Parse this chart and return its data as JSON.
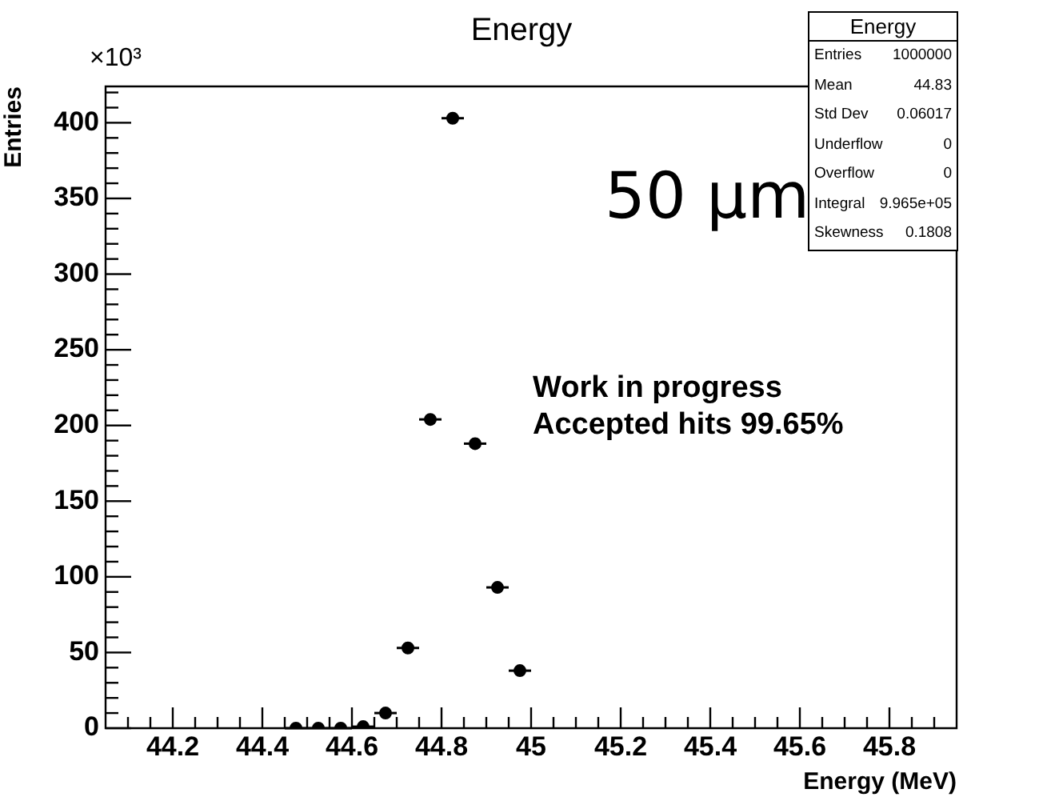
{
  "chart_data": {
    "type": "scatter",
    "title": "Energy",
    "xlabel": "Energy (MeV)",
    "ylabel": "Entries",
    "x": [
      44.475,
      44.525,
      44.575,
      44.625,
      44.675,
      44.725,
      44.775,
      44.825,
      44.875,
      44.925,
      44.975
    ],
    "values": [
      0,
      0,
      0,
      1,
      10,
      53,
      204,
      403,
      188,
      93,
      38
    ],
    "xerrors": [
      0.025,
      0.025,
      0.025,
      0.025,
      0.025,
      0.025,
      0.025,
      0.025,
      0.025,
      0.025,
      0.025
    ],
    "color": "#000000",
    "marker": "circle",
    "xlim": [
      44.05,
      45.95
    ],
    "xticks": [
      {
        "value": 44.1,
        "label": null
      },
      {
        "value": 44.15,
        "label": null
      },
      44.2,
      {
        "value": 44.25,
        "label": null
      },
      {
        "value": 44.3,
        "label": null
      },
      {
        "value": 44.35,
        "label": null
      },
      44.4,
      {
        "value": 44.45,
        "label": null
      },
      {
        "value": 44.5,
        "label": null
      },
      {
        "value": 44.55,
        "label": null
      },
      44.6,
      {
        "value": 44.65,
        "label": null
      },
      {
        "value": 44.7,
        "label": null
      },
      {
        "value": 44.75,
        "label": null
      },
      44.8,
      {
        "value": 44.85,
        "label": null
      },
      {
        "value": 44.9,
        "label": null
      },
      {
        "value": 44.95,
        "label": null
      },
      45,
      {
        "value": 45.05,
        "label": null
      },
      {
        "value": 45.1,
        "label": null
      },
      {
        "value": 45.15,
        "label": null
      },
      45.2,
      {
        "value": 45.25,
        "label": null
      },
      {
        "value": 45.3,
        "label": null
      },
      {
        "value": 45.35,
        "label": null
      },
      45.4,
      {
        "value": 45.45,
        "label": null
      },
      {
        "value": 45.5,
        "label": null
      },
      {
        "value": 45.55,
        "label": null
      },
      45.6,
      {
        "value": 45.65,
        "label": null
      },
      {
        "value": 45.7,
        "label": null
      },
      {
        "value": 45.75,
        "label": null
      },
      45.8,
      {
        "value": 45.85,
        "label": null
      },
      {
        "value": 45.9,
        "label": null
      }
    ],
    "ylim": [
      0,
      424
    ],
    "yticks": [
      0,
      {
        "value": 10,
        "label": null
      },
      {
        "value": 20,
        "label": null
      },
      {
        "value": 30,
        "label": null
      },
      {
        "value": 40,
        "label": null
      },
      50,
      {
        "value": 60,
        "label": null
      },
      {
        "value": 70,
        "label": null
      },
      {
        "value": 80,
        "label": null
      },
      {
        "value": 90,
        "label": null
      },
      100,
      {
        "value": 110,
        "label": null
      },
      {
        "value": 120,
        "label": null
      },
      {
        "value": 130,
        "label": null
      },
      {
        "value": 140,
        "label": null
      },
      150,
      {
        "value": 160,
        "label": null
      },
      {
        "value": 170,
        "label": null
      },
      {
        "value": 180,
        "label": null
      },
      {
        "value": 190,
        "label": null
      },
      200,
      {
        "value": 210,
        "label": null
      },
      {
        "value": 220,
        "label": null
      },
      {
        "value": 230,
        "label": null
      },
      {
        "value": 240,
        "label": null
      },
      250,
      {
        "value": 260,
        "label": null
      },
      {
        "value": 270,
        "label": null
      },
      {
        "value": 280,
        "label": null
      },
      {
        "value": 290,
        "label": null
      },
      300,
      {
        "value": 310,
        "label": null
      },
      {
        "value": 320,
        "label": null
      },
      {
        "value": 330,
        "label": null
      },
      {
        "value": 340,
        "label": null
      },
      350,
      {
        "value": 360,
        "label": null
      },
      {
        "value": 370,
        "label": null
      },
      {
        "value": 380,
        "label": null
      },
      {
        "value": 390,
        "label": null
      },
      400,
      {
        "value": 410,
        "label": null
      },
      {
        "value": 420,
        "label": null
      }
    ],
    "annotations": [
      "×10³",
      "50 µm",
      "Work in progress",
      "Accepted hits 99.65%",
      "Energy",
      "Entries",
      "1000000",
      "Mean",
      "44.83",
      "Std Dev",
      "0.06017",
      "Underflow",
      "0",
      "Overflow",
      "0",
      "Integral",
      "9.965e+05",
      "Skewness",
      "0.1808"
    ]
  }
}
